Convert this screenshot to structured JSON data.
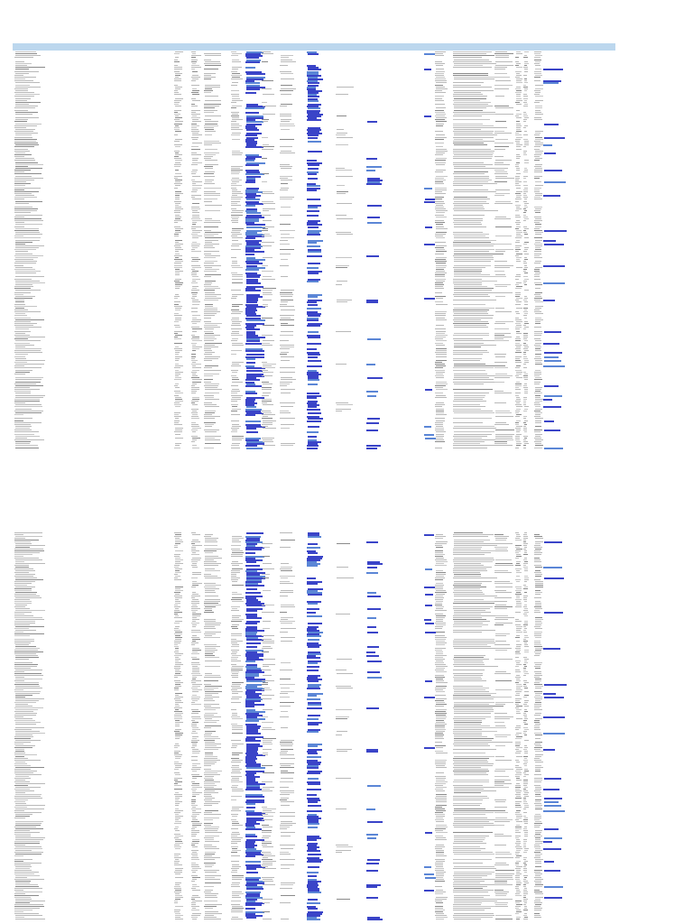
{
  "document": {
    "header_labels": [
      "",
      "",
      "",
      "",
      "",
      "",
      "",
      "",
      "",
      "",
      "",
      "",
      "",
      "",
      "",
      "",
      "",
      "",
      "",
      "",
      "",
      "",
      "",
      "",
      "",
      "",
      "",
      "",
      "",
      "",
      "",
      "",
      ""
    ],
    "cell_placeholder": ""
  },
  "colors": {
    "header_fill": "#bcd7ee",
    "hyperlink": "#3a44c8",
    "hyperlink_light": "#5b86d6",
    "cell_text": "#b8b8b8"
  },
  "pages": [
    {
      "name": "top-block",
      "row_count": 205
    },
    {
      "name": "bottom-block",
      "row_count": 215
    }
  ]
}
